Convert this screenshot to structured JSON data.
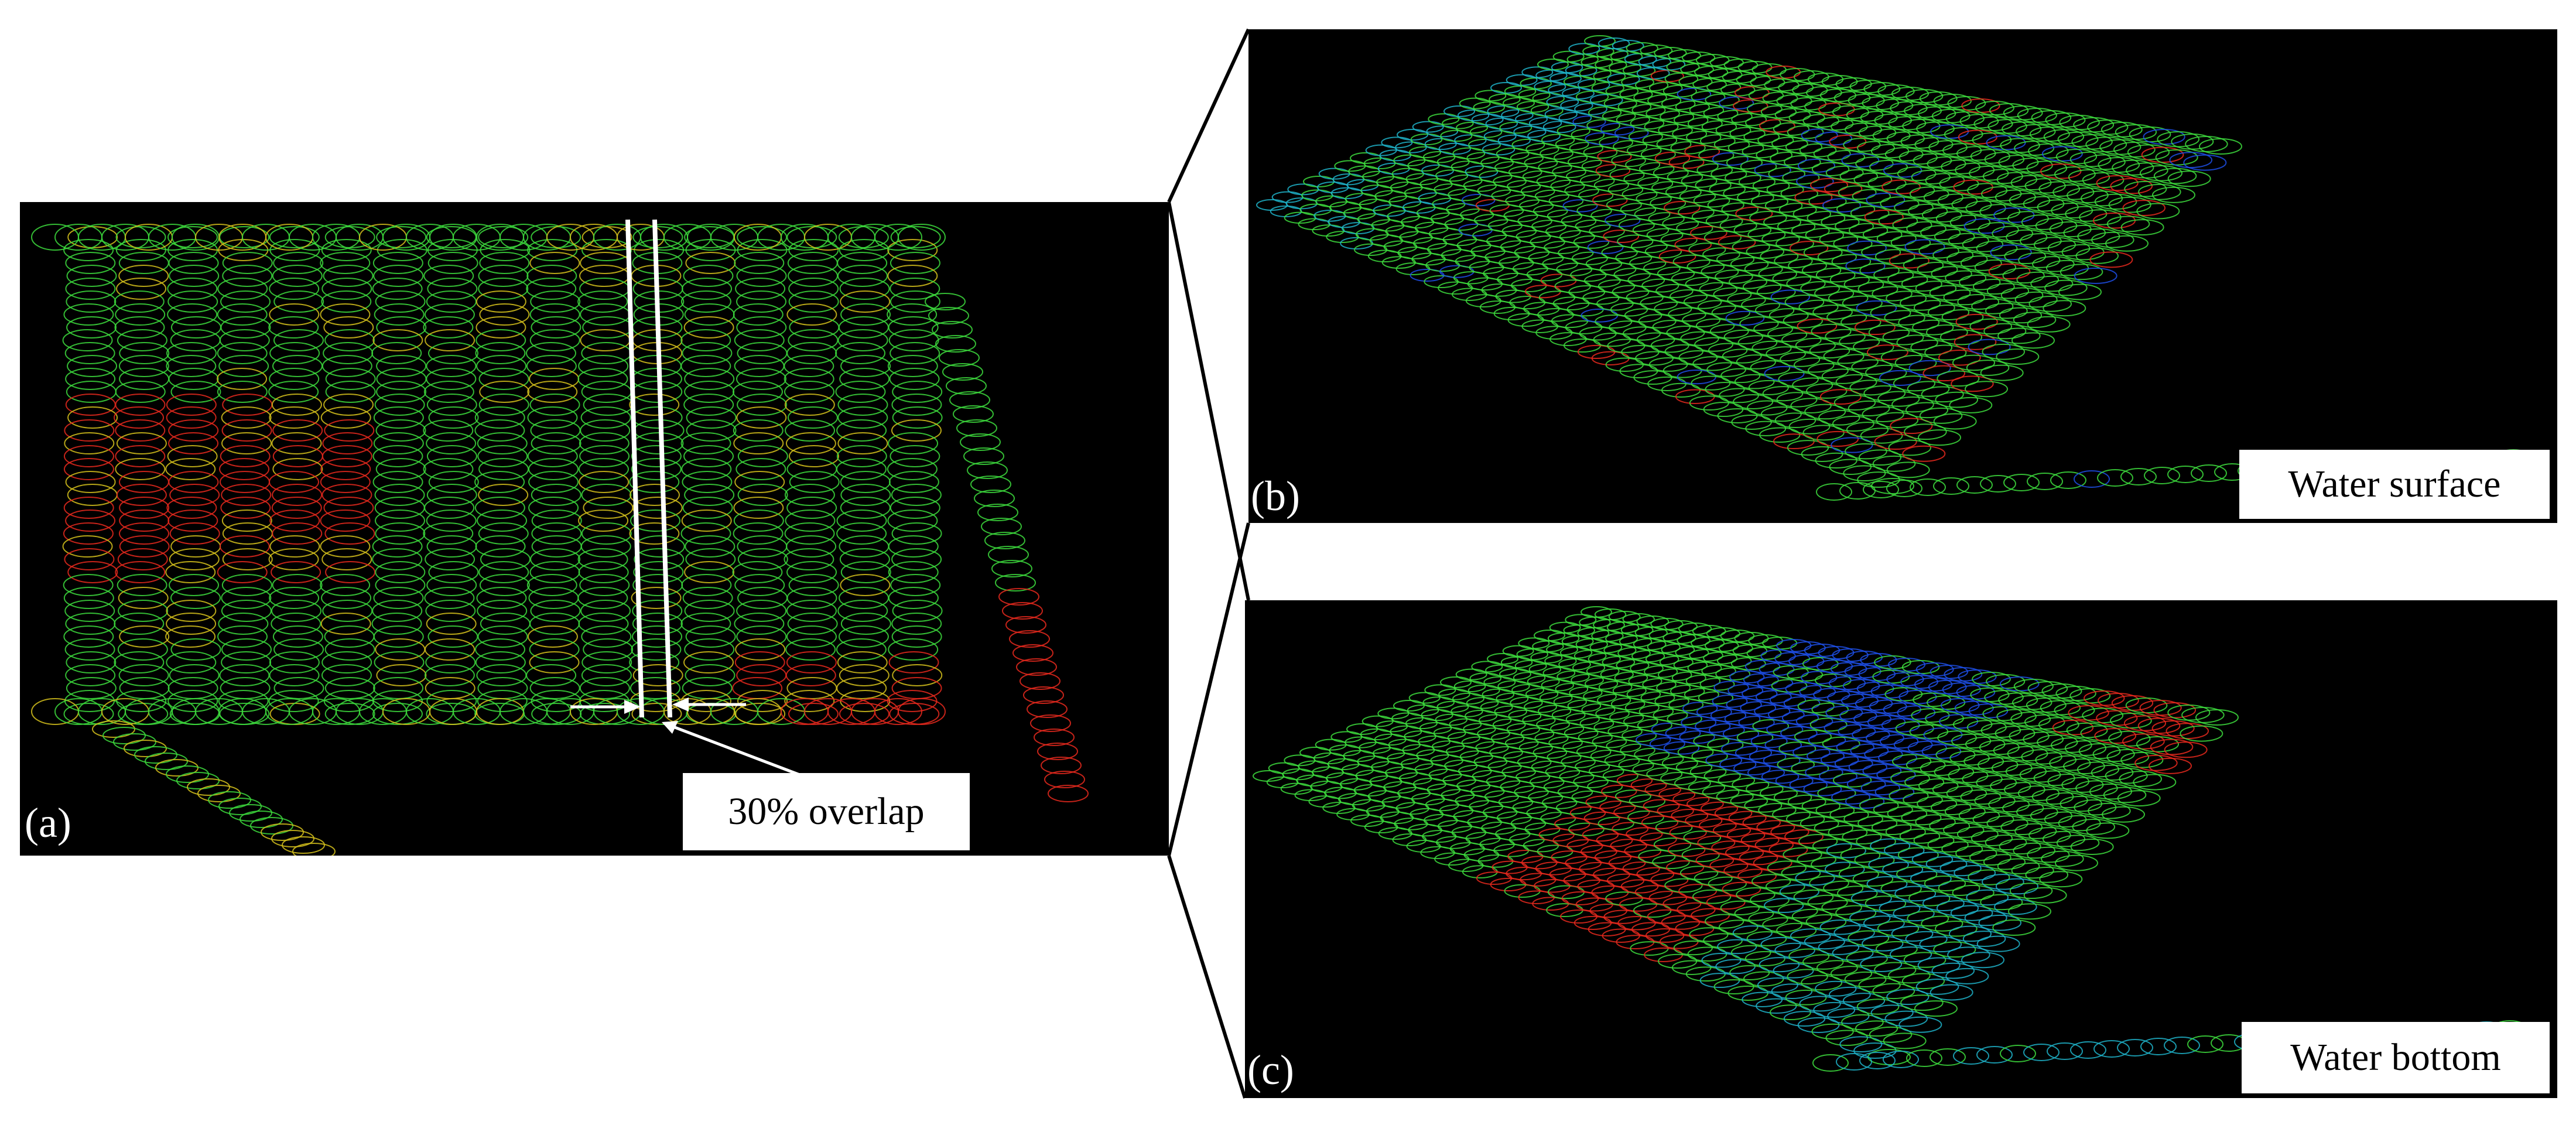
{
  "panels": {
    "a": {
      "label": "(a)",
      "annotation": "30% overlap"
    },
    "b": {
      "label": "(b)",
      "caption": "Water surface"
    },
    "c": {
      "label": "(c)",
      "caption": "Water bottom"
    }
  },
  "colors": {
    "background": "#000000",
    "green": "#3ddc3d",
    "red": "#e8291d",
    "yellow": "#d6c21c",
    "blue": "#1d4fe8",
    "cyan": "#1fb3c9"
  }
}
